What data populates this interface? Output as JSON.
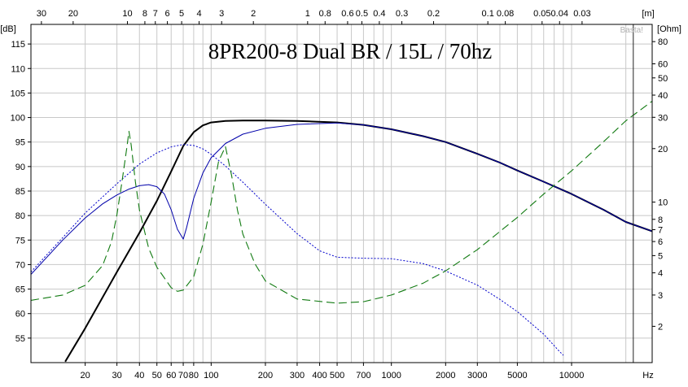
{
  "chart_data": {
    "type": "line",
    "title": "8PR200-8  Dual BR / 15L / 70hz",
    "watermark": "Basta!",
    "x_unit": "Hz",
    "x_scale": "log",
    "xlim": [
      10,
      28000
    ],
    "x_ticks": [
      20,
      30,
      40,
      50,
      60,
      70,
      80,
      100,
      200,
      300,
      400,
      500,
      700,
      1000,
      2000,
      3000,
      5000,
      10000
    ],
    "x_tick_labels": [
      "20",
      "30",
      "40",
      "50",
      "60",
      "70",
      "80",
      "100",
      "200",
      "300",
      "400",
      "500",
      "700",
      "1000",
      "2000",
      "3000",
      "5000",
      "10000"
    ],
    "top_axis": {
      "unit": "[m]",
      "labels": [
        "30",
        "20",
        "10",
        "8",
        "7",
        "6",
        "5",
        "4",
        "3",
        "2",
        "1",
        "0.8",
        "0.6",
        "0.5",
        "0.4",
        "0.3",
        "0.2",
        "0.1",
        "0.08",
        "0.05",
        "0.04",
        "0.03"
      ]
    },
    "left_axis": {
      "unit": "[dB]",
      "ylim": [
        50,
        119
      ],
      "ticks": [
        55,
        60,
        65,
        70,
        75,
        80,
        85,
        90,
        95,
        100,
        105,
        110,
        115
      ],
      "tick_labels": [
        "55",
        "60",
        "65",
        "70",
        "75",
        "80",
        "85",
        "90",
        "95",
        "100",
        "105",
        "110",
        "115"
      ]
    },
    "right_axis": {
      "unit": "[Ohm]",
      "scale": "log",
      "ylim": [
        1.25,
        100
      ],
      "ticks": [
        2,
        3,
        4,
        5,
        6,
        7,
        8,
        10,
        20,
        30,
        40,
        50,
        60,
        80
      ],
      "tick_labels": [
        "2",
        "3",
        "4",
        "5",
        "6",
        "7",
        "8",
        "10",
        "20",
        "30",
        "40",
        "50",
        "60",
        "80"
      ]
    },
    "marker_x": 22000,
    "grid": true,
    "series": [
      {
        "axis": "left",
        "color": "#000000",
        "style": "solid-thick",
        "points": [
          [
            15.5,
            50.2
          ],
          [
            20,
            57
          ],
          [
            30,
            68.5
          ],
          [
            40,
            76.5
          ],
          [
            50,
            83
          ],
          [
            60,
            89
          ],
          [
            70,
            94.2
          ],
          [
            80,
            97
          ],
          [
            90,
            98.4
          ],
          [
            100,
            99
          ],
          [
            120,
            99.3
          ],
          [
            150,
            99.4
          ],
          [
            200,
            99.4
          ],
          [
            300,
            99.3
          ],
          [
            500,
            99
          ],
          [
            700,
            98.5
          ],
          [
            1000,
            97.6
          ],
          [
            1500,
            96.2
          ],
          [
            2000,
            95
          ],
          [
            3000,
            92.6
          ],
          [
            4000,
            90.8
          ],
          [
            5000,
            89.2
          ],
          [
            7000,
            86.9
          ],
          [
            10000,
            84.4
          ],
          [
            15000,
            81.2
          ],
          [
            20000,
            78.7
          ],
          [
            28000,
            76.8
          ]
        ]
      },
      {
        "axis": "left",
        "color": "#0000aa",
        "style": "solid",
        "points": [
          [
            10,
            68
          ],
          [
            15,
            75
          ],
          [
            20,
            79.5
          ],
          [
            25,
            82.4
          ],
          [
            30,
            84.2
          ],
          [
            35,
            85.4
          ],
          [
            40,
            86.1
          ],
          [
            45,
            86.3
          ],
          [
            50,
            85.9
          ],
          [
            55,
            84.4
          ],
          [
            60,
            81.2
          ],
          [
            65,
            77.2
          ],
          [
            70,
            75.2
          ],
          [
            73,
            77.5
          ],
          [
            80,
            83.5
          ],
          [
            90,
            88.7
          ],
          [
            100,
            91.8
          ],
          [
            120,
            94.7
          ],
          [
            150,
            96.6
          ],
          [
            200,
            97.8
          ],
          [
            300,
            98.6
          ],
          [
            500,
            98.9
          ],
          [
            700,
            98.5
          ],
          [
            1000,
            97.6
          ],
          [
            1500,
            96.2
          ],
          [
            2000,
            95
          ],
          [
            3000,
            92.6
          ],
          [
            4000,
            90.8
          ],
          [
            5000,
            89.2
          ],
          [
            7000,
            86.9
          ],
          [
            10000,
            84.4
          ],
          [
            15000,
            81.2
          ],
          [
            20000,
            78.7
          ],
          [
            28000,
            76.8
          ]
        ]
      },
      {
        "axis": "left",
        "color": "#0000cc",
        "style": "dotted",
        "points": [
          [
            10,
            68.5
          ],
          [
            15,
            75.5
          ],
          [
            20,
            80.5
          ],
          [
            30,
            86.5
          ],
          [
            40,
            90.5
          ],
          [
            50,
            92.8
          ],
          [
            60,
            94
          ],
          [
            70,
            94.5
          ],
          [
            80,
            94.3
          ],
          [
            90,
            93.6
          ],
          [
            100,
            92.5
          ],
          [
            120,
            90.1
          ],
          [
            150,
            86.8
          ],
          [
            200,
            82.3
          ],
          [
            300,
            76.3
          ],
          [
            400,
            72.8
          ],
          [
            500,
            71.5
          ],
          [
            700,
            71.3
          ],
          [
            1000,
            71.2
          ],
          [
            1500,
            70.2
          ],
          [
            2000,
            68.7
          ],
          [
            3000,
            65.8
          ],
          [
            4000,
            62.9
          ],
          [
            5000,
            60.4
          ],
          [
            7000,
            55.8
          ],
          [
            8500,
            52.4
          ],
          [
            9000,
            51.5
          ]
        ]
      },
      {
        "axis": "right",
        "color": "#117a11",
        "style": "dashed",
        "points": [
          [
            10,
            2.8
          ],
          [
            15,
            3
          ],
          [
            20,
            3.4
          ],
          [
            25,
            4.4
          ],
          [
            28,
            6
          ],
          [
            30,
            8.5
          ],
          [
            32,
            13
          ],
          [
            34,
            20
          ],
          [
            35,
            25
          ],
          [
            36,
            21
          ],
          [
            38,
            13
          ],
          [
            40,
            9
          ],
          [
            45,
            5.5
          ],
          [
            50,
            4.3
          ],
          [
            60,
            3.3
          ],
          [
            65,
            3.15
          ],
          [
            70,
            3.2
          ],
          [
            80,
            3.8
          ],
          [
            90,
            5.8
          ],
          [
            100,
            10
          ],
          [
            110,
            17
          ],
          [
            120,
            20.5
          ],
          [
            130,
            14
          ],
          [
            140,
            9
          ],
          [
            150,
            6.6
          ],
          [
            175,
            4.5
          ],
          [
            200,
            3.6
          ],
          [
            300,
            2.85
          ],
          [
            500,
            2.7
          ],
          [
            700,
            2.75
          ],
          [
            1000,
            3
          ],
          [
            1500,
            3.5
          ],
          [
            2000,
            4.1
          ],
          [
            3000,
            5.4
          ],
          [
            5000,
            8.2
          ],
          [
            7000,
            11.1
          ],
          [
            10000,
            15
          ],
          [
            15000,
            21.8
          ],
          [
            20000,
            28.7
          ],
          [
            28000,
            37
          ]
        ]
      }
    ]
  }
}
